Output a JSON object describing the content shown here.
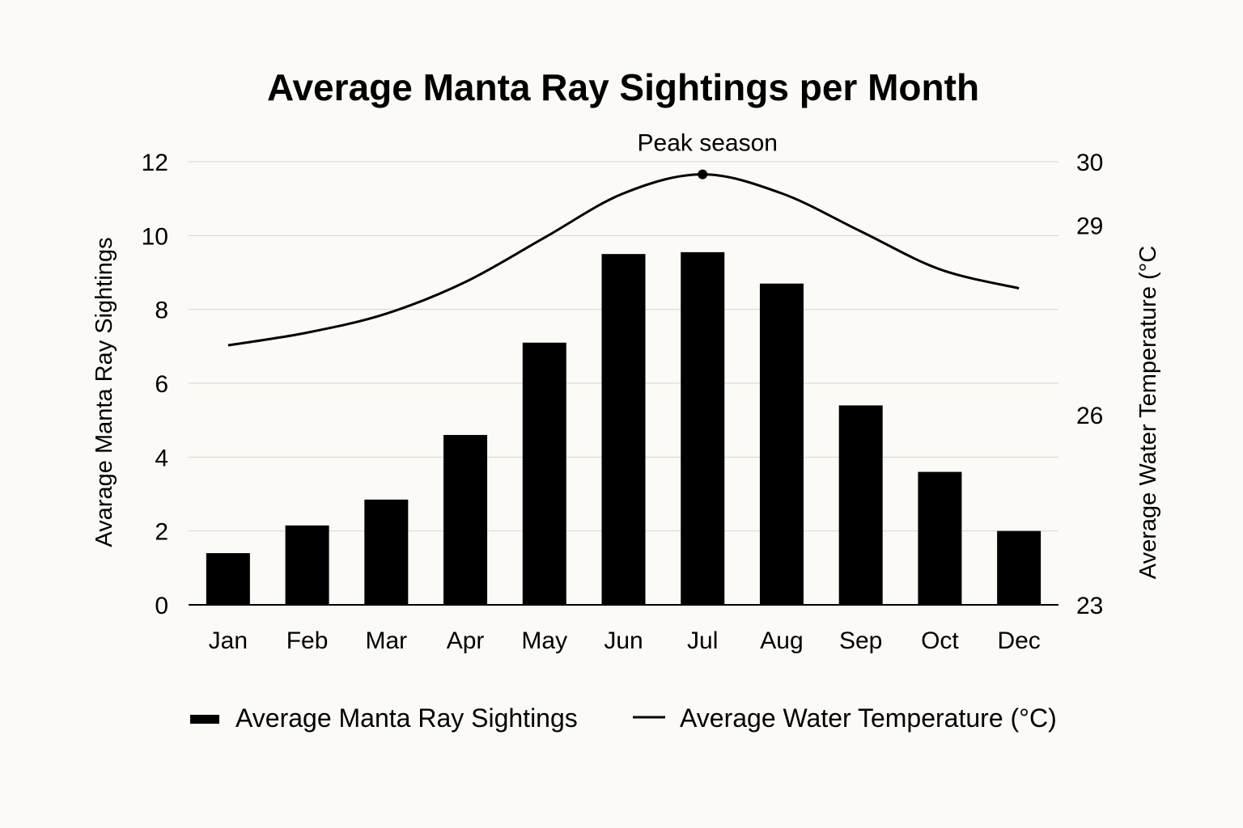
{
  "chart_data": {
    "type": "bar",
    "title": "Average Manta Ray Sightings per Month",
    "xlabel": "",
    "categories": [
      "Jan",
      "Feb",
      "Mar",
      "Apr",
      "May",
      "Jun",
      "Jul",
      "Aug",
      "Sep",
      "Oct",
      "Dec"
    ],
    "series": [
      {
        "name": "Average Manta Ray Sightings",
        "kind": "bar",
        "axis": "left",
        "color": "#000000",
        "values": [
          1.4,
          2.15,
          2.85,
          4.6,
          7.1,
          9.5,
          9.55,
          8.7,
          5.4,
          3.6,
          2.0
        ]
      },
      {
        "name": "Average Water Temperature (°C)",
        "kind": "line",
        "axis": "right",
        "color": "#000000",
        "values": [
          27.1,
          27.3,
          27.6,
          28.1,
          28.8,
          29.5,
          29.8,
          29.5,
          28.9,
          28.3,
          28.0
        ]
      }
    ],
    "y_left": {
      "label": "Avarage Manta Ray Sightings",
      "lim": [
        0,
        12
      ],
      "ticks": [
        "0",
        "2",
        "4",
        "6",
        "8",
        "10",
        "12"
      ]
    },
    "y_right": {
      "label": "Average Water Temperature (°C",
      "lim": [
        23,
        30
      ],
      "ticks": [
        "23",
        "26",
        "29",
        "30"
      ]
    },
    "annotations": [
      {
        "text": "Peak season",
        "category": "Jul",
        "value": 29.8,
        "axis": "right"
      }
    ],
    "grid": true,
    "legend_position": "bottom"
  }
}
